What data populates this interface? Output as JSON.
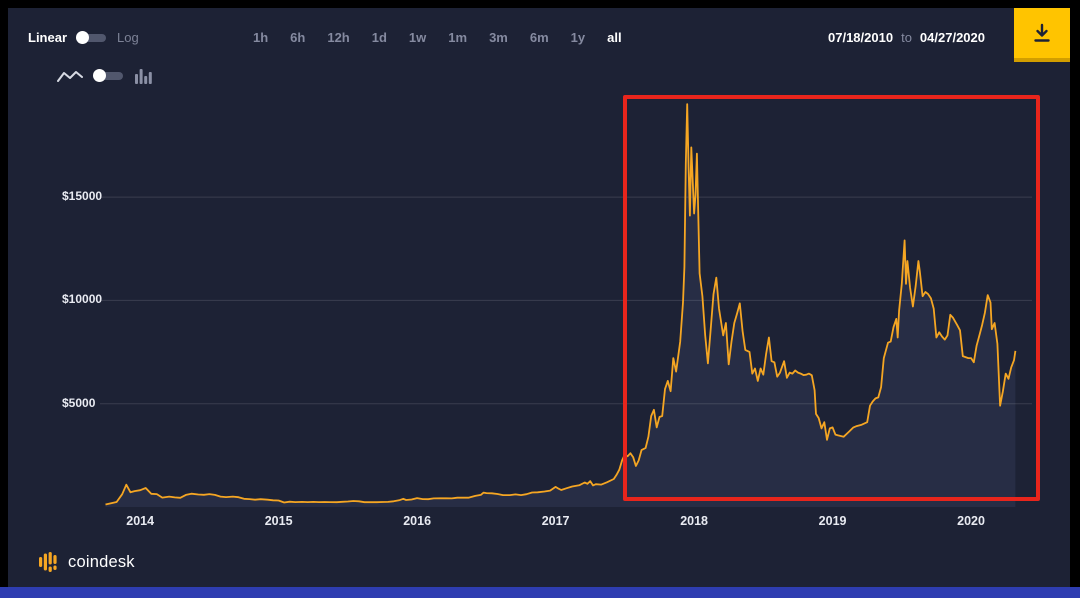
{
  "window": {
    "panel_bg": "#1d2235",
    "frame_color": "#000000",
    "accent_strip_color": "#2e3db1",
    "accent_yellow": "#ffc400"
  },
  "toolbar": {
    "scale": {
      "linear": "Linear",
      "log": "Log",
      "selected": "Linear"
    },
    "ranges": [
      "1h",
      "6h",
      "12h",
      "1d",
      "1w",
      "1m",
      "3m",
      "6m",
      "1y",
      "all"
    ],
    "active_range": "all",
    "date_from": "07/18/2010",
    "date_sep": "to",
    "date_to": "04/27/2020"
  },
  "chart_type": {
    "options": [
      "line",
      "bar"
    ],
    "selected": "line"
  },
  "annotation": {
    "shape": "rectangle",
    "color": "#e8251c"
  },
  "footer": {
    "brand": "coindesk"
  },
  "chart_data": {
    "type": "area",
    "x_range": [
      2013.71,
      2020.44
    ],
    "y_range": [
      0,
      19700
    ],
    "x_ticks": [
      {
        "value": 2014,
        "label": "2014"
      },
      {
        "value": 2015,
        "label": "2015"
      },
      {
        "value": 2016,
        "label": "2016"
      },
      {
        "value": 2017,
        "label": "2017"
      },
      {
        "value": 2018,
        "label": "2018"
      },
      {
        "value": 2019,
        "label": "2019"
      },
      {
        "value": 2020,
        "label": "2020"
      }
    ],
    "y_ticks": [
      {
        "value": 5000,
        "label": "$5000"
      },
      {
        "value": 10000,
        "label": "$10000"
      },
      {
        "value": 15000,
        "label": "$15000"
      }
    ],
    "grid": true,
    "legend": false,
    "colors": {
      "line": "#f5a623",
      "area": "#272d45",
      "grid": "rgba(255,255,255,0.13)"
    },
    "points": [
      [
        2013.75,
        120
      ],
      [
        2013.79,
        185
      ],
      [
        2013.83,
        240
      ],
      [
        2013.87,
        620
      ],
      [
        2013.9,
        1080
      ],
      [
        2013.93,
        710
      ],
      [
        2013.96,
        770
      ],
      [
        2014,
        815
      ],
      [
        2014.04,
        920
      ],
      [
        2014.08,
        640
      ],
      [
        2014.12,
        625
      ],
      [
        2014.16,
        455
      ],
      [
        2014.21,
        505
      ],
      [
        2014.25,
        465
      ],
      [
        2014.29,
        445
      ],
      [
        2014.33,
        585
      ],
      [
        2014.37,
        645
      ],
      [
        2014.42,
        605
      ],
      [
        2014.46,
        590
      ],
      [
        2014.5,
        625
      ],
      [
        2014.54,
        585
      ],
      [
        2014.58,
        505
      ],
      [
        2014.62,
        480
      ],
      [
        2014.67,
        505
      ],
      [
        2014.71,
        475
      ],
      [
        2014.75,
        395
      ],
      [
        2014.79,
        380
      ],
      [
        2014.83,
        355
      ],
      [
        2014.87,
        378
      ],
      [
        2014.92,
        355
      ],
      [
        2014.96,
        325
      ],
      [
        2015,
        315
      ],
      [
        2015.04,
        218
      ],
      [
        2015.08,
        258
      ],
      [
        2015.12,
        238
      ],
      [
        2015.17,
        248
      ],
      [
        2015.21,
        236
      ],
      [
        2015.25,
        247
      ],
      [
        2015.29,
        236
      ],
      [
        2015.33,
        243
      ],
      [
        2015.37,
        237
      ],
      [
        2015.42,
        232
      ],
      [
        2015.46,
        252
      ],
      [
        2015.5,
        268
      ],
      [
        2015.54,
        288
      ],
      [
        2015.58,
        276
      ],
      [
        2015.62,
        232
      ],
      [
        2015.67,
        237
      ],
      [
        2015.71,
        232
      ],
      [
        2015.75,
        240
      ],
      [
        2015.79,
        248
      ],
      [
        2015.83,
        278
      ],
      [
        2015.87,
        325
      ],
      [
        2015.9,
        395
      ],
      [
        2015.92,
        340
      ],
      [
        2015.96,
        362
      ],
      [
        2016,
        432
      ],
      [
        2016.04,
        382
      ],
      [
        2016.08,
        378
      ],
      [
        2016.12,
        418
      ],
      [
        2016.17,
        422
      ],
      [
        2016.21,
        419
      ],
      [
        2016.25,
        418
      ],
      [
        2016.29,
        450
      ],
      [
        2016.33,
        457
      ],
      [
        2016.37,
        452
      ],
      [
        2016.42,
        535
      ],
      [
        2016.46,
        585
      ],
      [
        2016.48,
        695
      ],
      [
        2016.5,
        672
      ],
      [
        2016.54,
        662
      ],
      [
        2016.58,
        628
      ],
      [
        2016.62,
        578
      ],
      [
        2016.67,
        578
      ],
      [
        2016.71,
        612
      ],
      [
        2016.75,
        578
      ],
      [
        2016.79,
        618
      ],
      [
        2016.83,
        702
      ],
      [
        2016.87,
        712
      ],
      [
        2016.92,
        748
      ],
      [
        2016.96,
        795
      ],
      [
        2017,
        972
      ],
      [
        2017.02,
        892
      ],
      [
        2017.04,
        825
      ],
      [
        2017.08,
        908
      ],
      [
        2017.12,
        992
      ],
      [
        2017.17,
        1052
      ],
      [
        2017.21,
        1185
      ],
      [
        2017.23,
        1125
      ],
      [
        2017.25,
        1255
      ],
      [
        2017.27,
        1045
      ],
      [
        2017.29,
        1105
      ],
      [
        2017.33,
        1085
      ],
      [
        2017.37,
        1195
      ],
      [
        2017.42,
        1355
      ],
      [
        2017.44,
        1555
      ],
      [
        2017.46,
        1805
      ],
      [
        2017.48,
        2255
      ],
      [
        2017.5,
        2555
      ],
      [
        2017.52,
        2455
      ],
      [
        2017.54,
        2605
      ],
      [
        2017.56,
        2405
      ],
      [
        2017.58,
        1985
      ],
      [
        2017.6,
        2255
      ],
      [
        2017.62,
        2755
      ],
      [
        2017.65,
        2855
      ],
      [
        2017.67,
        3405
      ],
      [
        2017.69,
        4405
      ],
      [
        2017.71,
        4705
      ],
      [
        2017.73,
        3855
      ],
      [
        2017.75,
        4355
      ],
      [
        2017.77,
        4405
      ],
      [
        2017.79,
        5705
      ],
      [
        2017.81,
        6105
      ],
      [
        2017.83,
        5605
      ],
      [
        2017.85,
        7205
      ],
      [
        2017.87,
        6555
      ],
      [
        2017.9,
        8005
      ],
      [
        2017.92,
        9905
      ],
      [
        2017.93,
        11605
      ],
      [
        2017.94,
        16605
      ],
      [
        2017.95,
        19500
      ],
      [
        2017.96,
        16405
      ],
      [
        2017.97,
        14105
      ],
      [
        2017.98,
        17405
      ],
      [
        2018,
        14205
      ],
      [
        2018.01,
        15105
      ],
      [
        2018.02,
        17105
      ],
      [
        2018.04,
        11305
      ],
      [
        2018.06,
        10205
      ],
      [
        2018.08,
        8305
      ],
      [
        2018.1,
        6955
      ],
      [
        2018.12,
        8605
      ],
      [
        2018.14,
        10305
      ],
      [
        2018.16,
        11105
      ],
      [
        2018.18,
        9605
      ],
      [
        2018.21,
        8305
      ],
      [
        2018.23,
        8905
      ],
      [
        2018.25,
        6905
      ],
      [
        2018.27,
        8005
      ],
      [
        2018.29,
        8905
      ],
      [
        2018.31,
        9355
      ],
      [
        2018.33,
        9855
      ],
      [
        2018.35,
        8505
      ],
      [
        2018.37,
        7605
      ],
      [
        2018.4,
        7505
      ],
      [
        2018.42,
        6455
      ],
      [
        2018.44,
        6705
      ],
      [
        2018.46,
        6105
      ],
      [
        2018.48,
        6705
      ],
      [
        2018.5,
        6405
      ],
      [
        2018.52,
        7405
      ],
      [
        2018.54,
        8205
      ],
      [
        2018.56,
        7055
      ],
      [
        2018.58,
        7005
      ],
      [
        2018.6,
        6305
      ],
      [
        2018.62,
        6505
      ],
      [
        2018.65,
        7055
      ],
      [
        2018.67,
        6255
      ],
      [
        2018.69,
        6505
      ],
      [
        2018.71,
        6455
      ],
      [
        2018.73,
        6605
      ],
      [
        2018.75,
        6505
      ],
      [
        2018.77,
        6455
      ],
      [
        2018.79,
        6385
      ],
      [
        2018.81,
        6405
      ],
      [
        2018.83,
        6455
      ],
      [
        2018.85,
        6375
      ],
      [
        2018.87,
        5655
      ],
      [
        2018.88,
        4505
      ],
      [
        2018.9,
        4305
      ],
      [
        2018.92,
        3805
      ],
      [
        2018.94,
        4105
      ],
      [
        2018.96,
        3255
      ],
      [
        2018.98,
        3805
      ],
      [
        2019,
        3855
      ],
      [
        2019.02,
        3505
      ],
      [
        2019.04,
        3465
      ],
      [
        2019.08,
        3405
      ],
      [
        2019.12,
        3655
      ],
      [
        2019.15,
        3855
      ],
      [
        2019.17,
        3905
      ],
      [
        2019.21,
        3985
      ],
      [
        2019.25,
        4105
      ],
      [
        2019.27,
        4905
      ],
      [
        2019.29,
        5105
      ],
      [
        2019.31,
        5255
      ],
      [
        2019.33,
        5305
      ],
      [
        2019.35,
        5805
      ],
      [
        2019.37,
        7205
      ],
      [
        2019.4,
        7955
      ],
      [
        2019.42,
        8005
      ],
      [
        2019.44,
        8705
      ],
      [
        2019.46,
        9105
      ],
      [
        2019.47,
        8205
      ],
      [
        2019.48,
        9505
      ],
      [
        2019.5,
        10805
      ],
      [
        2019.52,
        12905
      ],
      [
        2019.53,
        10805
      ],
      [
        2019.54,
        11905
      ],
      [
        2019.56,
        10605
      ],
      [
        2019.58,
        9705
      ],
      [
        2019.6,
        10705
      ],
      [
        2019.62,
        11905
      ],
      [
        2019.63,
        11405
      ],
      [
        2019.65,
        10205
      ],
      [
        2019.67,
        10405
      ],
      [
        2019.69,
        10305
      ],
      [
        2019.71,
        10105
      ],
      [
        2019.73,
        9605
      ],
      [
        2019.75,
        8205
      ],
      [
        2019.77,
        8455
      ],
      [
        2019.79,
        8255
      ],
      [
        2019.81,
        8105
      ],
      [
        2019.83,
        8305
      ],
      [
        2019.85,
        9305
      ],
      [
        2019.87,
        9155
      ],
      [
        2019.9,
        8805
      ],
      [
        2019.92,
        8555
      ],
      [
        2019.94,
        7305
      ],
      [
        2019.96,
        7255
      ],
      [
        2019.98,
        7205
      ],
      [
        2020,
        7205
      ],
      [
        2020.02,
        7005
      ],
      [
        2020.04,
        7805
      ],
      [
        2020.06,
        8305
      ],
      [
        2020.08,
        8805
      ],
      [
        2020.1,
        9405
      ],
      [
        2020.12,
        10255
      ],
      [
        2020.14,
        9905
      ],
      [
        2020.15,
        8605
      ],
      [
        2020.17,
        8905
      ],
      [
        2020.19,
        7905
      ],
      [
        2020.21,
        4905
      ],
      [
        2020.23,
        5605
      ],
      [
        2020.25,
        6455
      ],
      [
        2020.27,
        6205
      ],
      [
        2020.29,
        6755
      ],
      [
        2020.31,
        7105
      ],
      [
        2020.32,
        7555
      ]
    ]
  }
}
